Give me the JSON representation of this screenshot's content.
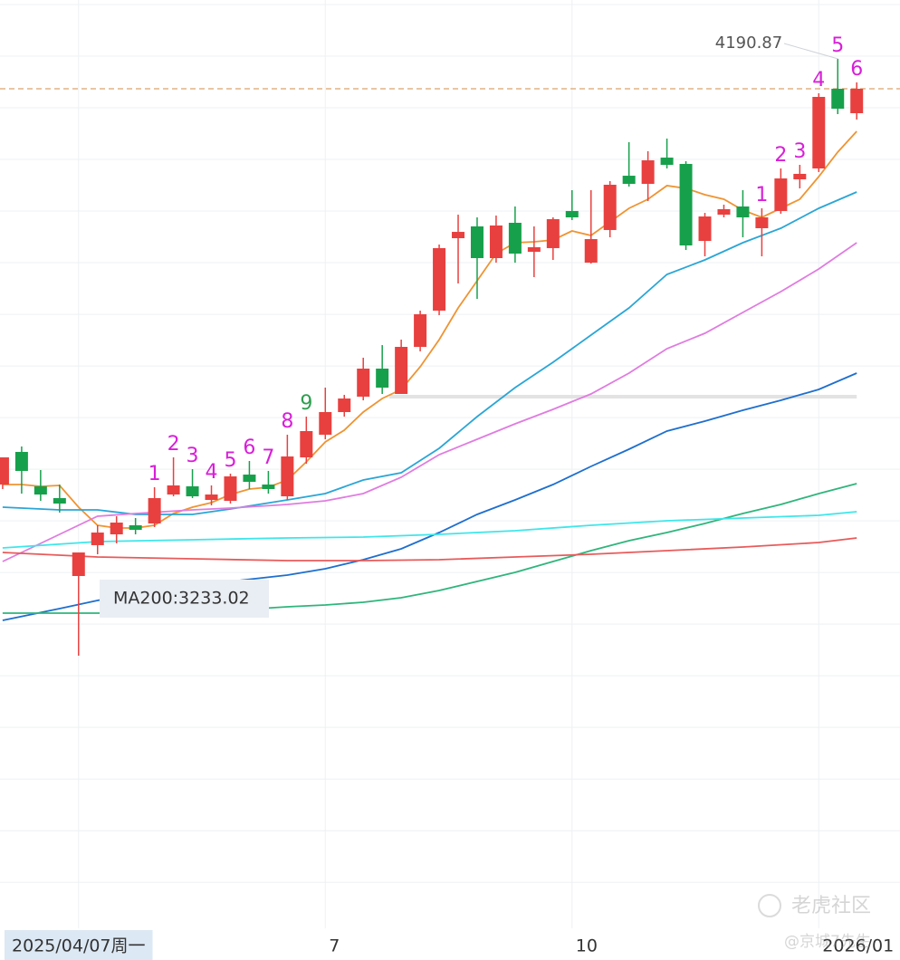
{
  "chart_data": {
    "type": "candlestick",
    "xlim": [
      -0.14,
      47.28
    ],
    "ylim": [
      2650,
      4295
    ],
    "up_color": "#e8403f",
    "down_color": "#17a04b",
    "open": [
      3436.4,
      3494.2,
      3433.2,
      3412.3,
      3274.3,
      3328.9,
      3348.1,
      3364.2,
      3367.4,
      3418.7,
      3433.2,
      3409.1,
      3407.5,
      3454.0,
      3436.4,
      3415.5,
      3484.5,
      3524.6,
      3564.8,
      3592.1,
      3641.8,
      3596.9,
      3680.3,
      3744.5,
      3872.9,
      3893.8,
      3837.6,
      3900.2,
      3848.8,
      3855.3,
      3921.1,
      3829.6,
      3887.4,
      3983.6,
      3969.2,
      4015.7,
      4004.5,
      3868.1,
      3914.6,
      3929.1,
      3890.6,
      3921.1,
      3977.2,
      3996.5,
      4137.7,
      4094.4
    ],
    "high": [
      3484.5,
      3503.8,
      3462.1,
      3436.4,
      3316.0,
      3364.2,
      3380.2,
      3377.0,
      3431.6,
      3484.5,
      3463.7,
      3434.8,
      3455.6,
      3478.1,
      3460.5,
      3524.6,
      3556.7,
      3608.1,
      3595.3,
      3661.1,
      3683.5,
      3693.2,
      3744.5,
      3861.7,
      3914.6,
      3909.8,
      3913.0,
      3929.1,
      3893.8,
      3909.8,
      3958.0,
      3958.0,
      3974.0,
      4043.0,
      4027.0,
      4049.4,
      4009.3,
      3917.8,
      3932.3,
      3958.0,
      3925.9,
      3996.5,
      4002.9,
      4129.7,
      4190.87,
      4149.0
    ],
    "low": [
      3428.4,
      3420.3,
      3407.5,
      3386.6,
      3133.1,
      3312.8,
      3332.1,
      3348.1,
      3361.0,
      3415.5,
      3412.3,
      3399.5,
      3402.7,
      3428.4,
      3420.3,
      3409.1,
      3473.3,
      3516.6,
      3556.7,
      3585.6,
      3596.9,
      3596.9,
      3672.3,
      3736.5,
      3792.7,
      3765.4,
      3829.6,
      3829.6,
      3803.9,
      3834.4,
      3905.0,
      3828.0,
      3874.5,
      3964.4,
      3938.7,
      3996.5,
      3852.0,
      3840.8,
      3909.8,
      3874.5,
      3840.8,
      3916.2,
      3961.2,
      3990.1,
      4092.8,
      4083.2
    ],
    "close": [
      3484.5,
      3460.5,
      3418.7,
      3402.7,
      3316.0,
      3351.3,
      3369.0,
      3356.1,
      3412.3,
      3434.8,
      3415.5,
      3418.7,
      3450.8,
      3441.2,
      3428.4,
      3486.1,
      3531.1,
      3564.8,
      3588.8,
      3641.8,
      3608.1,
      3680.3,
      3738.1,
      3855.3,
      3884.1,
      3837.6,
      3895.4,
      3845.6,
      3856.9,
      3906.6,
      3909.8,
      3871.3,
      3967.6,
      3969.2,
      4010.9,
      4002.9,
      3860.1,
      3911.4,
      3924.3,
      3909.8,
      3909.8,
      3978.8,
      3986.9,
      4123.3,
      4102.4,
      4137.7
    ],
    "ma_lines": [
      {
        "color": "#ef9433",
        "values": [
          3436.4,
          3436.4,
          3433.2,
          3434.8,
          3396.3,
          3364.2,
          3359.3,
          3359.3,
          3364.2,
          3385.0,
          3396.3,
          3404.3,
          3418.7,
          3428.4,
          3431.6,
          3444.4,
          3476.5,
          3511.8,
          3532.7,
          3564.8,
          3588.8,
          3604.9,
          3645.0,
          3693.2,
          3749.3,
          3797.5,
          3845.6,
          3864.9,
          3866.5,
          3869.7,
          3885.8,
          3877.7,
          3901.8,
          3925.9,
          3941.9,
          3966.0,
          3961.2,
          3949.9,
          3941.9,
          3922.7,
          3909.8,
          3925.9,
          3941.9,
          3982.0,
          4025.4,
          4062.3
        ]
      },
      {
        "color": "#2aa6d6",
        "x": [
          0,
          3,
          5,
          7,
          10,
          12,
          15,
          17,
          19,
          21,
          23,
          25,
          27,
          29,
          31,
          33,
          35,
          37,
          39,
          41,
          43,
          45
        ],
        "values": [
          3396.3,
          3391.4,
          3391.4,
          3383.4,
          3383.4,
          3393.0,
          3409.1,
          3420.3,
          3444.4,
          3457.2,
          3500.6,
          3556.7,
          3608.1,
          3653.0,
          3701.2,
          3749.3,
          3808.7,
          3834.4,
          3864.9,
          3890.6,
          3925.9,
          3954.8
        ]
      },
      {
        "color": "#e07ce0",
        "x": [
          0,
          3,
          5,
          7,
          10,
          12,
          15,
          17,
          19,
          21,
          23,
          25,
          27,
          29,
          31,
          33,
          35,
          37,
          39,
          41,
          43,
          45
        ],
        "values": [
          3300.0,
          3348.1,
          3380.2,
          3385.0,
          3391.4,
          3394.7,
          3401.1,
          3407.5,
          3420.3,
          3449.2,
          3489.3,
          3516.6,
          3543.9,
          3569.6,
          3596.9,
          3633.8,
          3677.1,
          3704.4,
          3741.3,
          3778.2,
          3818.3,
          3864.9
        ]
      },
      {
        "color": "#1e6fce",
        "x": [
          0,
          3,
          5,
          7,
          10,
          12,
          15,
          17,
          19,
          21,
          23,
          25,
          27,
          29,
          31,
          33,
          35,
          37,
          39,
          41,
          43,
          45
        ],
        "values": [
          3195.6,
          3216.5,
          3231.0,
          3243.8,
          3255.0,
          3264.7,
          3275.9,
          3287.1,
          3303.2,
          3322.4,
          3351.3,
          3383.4,
          3409.1,
          3436.4,
          3468.5,
          3499.0,
          3531.1,
          3548.7,
          3568.0,
          3585.6,
          3604.9,
          3633.8
        ]
      },
      {
        "color": "#2fb57c",
        "x": [
          0,
          3,
          5,
          7,
          10,
          12,
          15,
          17,
          19,
          21,
          23,
          25,
          27,
          29,
          31,
          33,
          35,
          37,
          39,
          41,
          43,
          45
        ],
        "values": [
          3208.5,
          3208.5,
          3208.5,
          3208.5,
          3211.7,
          3213.3,
          3219.7,
          3222.9,
          3227.7,
          3235.8,
          3248.6,
          3264.7,
          3280.7,
          3300.0,
          3319.2,
          3336.9,
          3351.3,
          3367.4,
          3385.0,
          3401.1,
          3420.3,
          3438.0
        ]
      },
      {
        "color": "#3ee6ea",
        "x": [
          0,
          5,
          10,
          15,
          19,
          23,
          27,
          31,
          35,
          39,
          43,
          45
        ],
        "values": [
          3324.0,
          3335.3,
          3338.5,
          3341.7,
          3343.3,
          3348.1,
          3354.5,
          3364.2,
          3372.2,
          3377.0,
          3381.8,
          3388.2
        ]
      },
      {
        "color": "#e85b5b",
        "x": [
          0,
          5,
          10,
          15,
          19,
          23,
          27,
          31,
          35,
          39,
          43,
          45
        ],
        "values": [
          3316.0,
          3308.0,
          3304.8,
          3301.6,
          3301.6,
          3303.2,
          3308.0,
          3312.8,
          3319.2,
          3325.6,
          3333.7,
          3341.7
        ]
      }
    ],
    "level": 3592.1,
    "level_color": "#e3e3e3",
    "last_price_line_color": "#d9a36c",
    "grid_lines": [
      4287.0,
      4195.5,
      4104.0,
      4012.5,
      3921.0,
      3829.5,
      3738.0,
      3646.5,
      3555.0,
      3463.5,
      3372.0,
      3280.5,
      3189.0,
      3097.5,
      3006.0,
      2914.5,
      2823.0,
      2731.5
    ],
    "xticks": [
      {
        "value": 4,
        "label": "2025/04/07周一"
      },
      {
        "value": 17,
        "label": "7"
      },
      {
        "value": 30,
        "label": "10"
      },
      {
        "value": 43,
        "label": "2026/01"
      }
    ],
    "td_color": "#d81ed8",
    "td_counts": [
      null,
      null,
      null,
      null,
      null,
      null,
      null,
      null,
      {
        "text": "1"
      },
      {
        "text": "2"
      },
      {
        "text": "3"
      },
      {
        "text": "4"
      },
      {
        "text": "5"
      },
      {
        "text": "6"
      },
      {
        "text": "7"
      },
      {
        "text": "8"
      },
      {
        "text": "9",
        "color": "#2e9e4f"
      },
      null,
      null,
      null,
      null,
      null,
      null,
      null,
      null,
      null,
      null,
      null,
      null,
      null,
      null,
      null,
      null,
      null,
      null,
      null,
      null,
      null,
      null,
      null,
      {
        "text": "1"
      },
      {
        "text": "2"
      },
      {
        "text": "3"
      },
      {
        "text": "4"
      },
      {
        "text": "5"
      },
      {
        "text": "6"
      }
    ],
    "ma_label": "MA200:3233.02",
    "watermark": "老虎社区",
    "author": "@京城7先生"
  }
}
